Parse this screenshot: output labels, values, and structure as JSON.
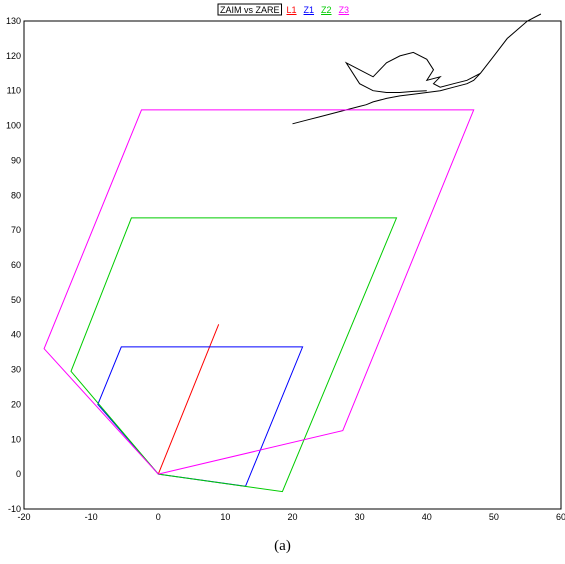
{
  "caption": "(a)",
  "chart_data": {
    "type": "line",
    "title": "",
    "xlabel": "",
    "ylabel": "",
    "xlim": [
      -20,
      60
    ],
    "ylim": [
      -10,
      130
    ],
    "xticks": [
      -20,
      -10,
      0,
      10,
      20,
      30,
      40,
      50,
      60
    ],
    "yticks": [
      -10,
      0,
      10,
      20,
      30,
      40,
      50,
      60,
      70,
      80,
      90,
      100,
      110,
      120,
      130
    ],
    "grid": true,
    "legend": {
      "placement": "top-center",
      "items": [
        {
          "label": "ZAIM vs ZARE",
          "color": "#000000",
          "boxed": true
        },
        {
          "label": "L1",
          "color": "#ff0000"
        },
        {
          "label": "Z1",
          "color": "#0000ff"
        },
        {
          "label": "Z2",
          "color": "#00cc00"
        },
        {
          "label": "Z3",
          "color": "#ff00ff"
        }
      ]
    },
    "series": [
      {
        "name": "ZAIM vs ZARE",
        "color": "#000000",
        "points": [
          [
            20,
            100.5
          ],
          [
            22,
            101.5
          ],
          [
            24,
            102.5
          ],
          [
            26,
            103.5
          ],
          [
            28,
            104.5
          ],
          [
            30,
            105.5
          ],
          [
            31,
            106
          ],
          [
            32,
            106.8
          ],
          [
            34,
            107.8
          ],
          [
            36,
            108.5
          ],
          [
            38,
            109
          ],
          [
            40,
            109.5
          ],
          [
            42,
            110
          ],
          [
            44,
            111
          ],
          [
            46,
            112
          ],
          [
            47,
            113
          ],
          [
            48,
            115
          ],
          [
            50,
            120
          ],
          [
            52,
            125
          ],
          [
            55,
            130
          ],
          [
            57,
            132
          ],
          [
            55,
            130
          ],
          [
            52,
            125
          ],
          [
            50,
            120
          ],
          [
            48,
            115
          ],
          [
            46,
            113
          ],
          [
            44,
            112
          ],
          [
            42,
            111
          ],
          [
            41,
            112
          ],
          [
            42,
            114
          ],
          [
            40,
            113
          ],
          [
            41,
            116
          ],
          [
            40,
            119
          ],
          [
            38,
            121
          ],
          [
            36,
            120
          ],
          [
            34,
            118
          ],
          [
            32,
            114
          ],
          [
            28,
            118
          ],
          [
            30,
            112
          ],
          [
            32,
            110
          ],
          [
            34,
            109.5
          ],
          [
            36,
            109.5
          ],
          [
            38,
            109.8
          ],
          [
            40,
            110
          ]
        ]
      },
      {
        "name": "L1",
        "color": "#ff0000",
        "points": [
          [
            0,
            0
          ],
          [
            9,
            43
          ]
        ]
      },
      {
        "name": "Z1",
        "color": "#0000ff",
        "points": [
          [
            0,
            0
          ],
          [
            13,
            -3.5
          ],
          [
            21.5,
            36.5
          ],
          [
            -5.5,
            36.5
          ],
          [
            -9,
            20
          ],
          [
            0,
            0
          ]
        ]
      },
      {
        "name": "Z2",
        "color": "#00cc00",
        "points": [
          [
            0,
            0
          ],
          [
            18.5,
            -5
          ],
          [
            35.5,
            73.5
          ],
          [
            -4,
            73.5
          ],
          [
            -13,
            29.5
          ],
          [
            0,
            0
          ]
        ]
      },
      {
        "name": "Z3",
        "color": "#ff00ff",
        "points": [
          [
            0,
            0
          ],
          [
            27.5,
            12.5
          ],
          [
            47,
            104.5
          ],
          [
            -2.5,
            104.5
          ],
          [
            -17,
            36
          ],
          [
            0,
            0
          ]
        ]
      }
    ]
  }
}
